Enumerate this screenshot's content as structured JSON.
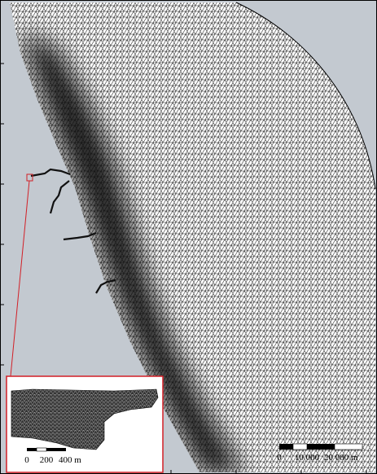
{
  "scale_bar": {
    "labels": [
      "0",
      "10 000",
      "20 000 m"
    ]
  },
  "inset": {
    "scale_bar": {
      "labels": [
        "0",
        "200",
        "400 m"
      ]
    }
  }
}
